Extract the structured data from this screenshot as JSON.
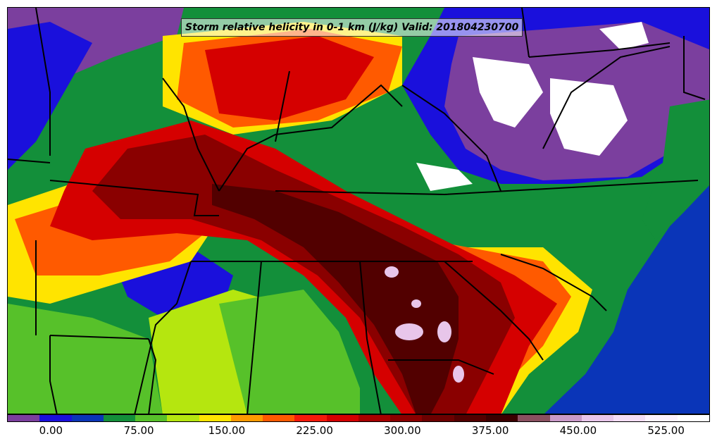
{
  "title": "Storm relative helicity in 0-1 km (J/kg) Valid: 201804230700",
  "colorbar": {
    "colors": [
      "#7b3f9e",
      "#1a10dc",
      "#0a35b8",
      "#138f3a",
      "#57c12a",
      "#b5e60f",
      "#ffe400",
      "#ff9a00",
      "#ff5a00",
      "#f51a0a",
      "#d50000",
      "#a70000",
      "#8a0000",
      "#6c0000",
      "#520000",
      "#3b0000",
      "#8a5060",
      "#c99ac8",
      "#e8c6ea",
      "#f4ddf5",
      "#fdf2fd",
      "#ffffff"
    ],
    "tick_labels": [
      "0.00",
      "75.00",
      "150.00",
      "225.00",
      "300.00",
      "375.00",
      "450.00",
      "525.00"
    ],
    "tick_values": [
      0,
      75,
      150,
      225,
      300,
      375,
      450,
      525
    ],
    "range": [
      -37.5,
      562.5
    ]
  },
  "field_regions": [
    {
      "name": "background-low",
      "color": "#138f3a"
    },
    {
      "name": "northwest-purple",
      "color": "#7b3f9e"
    },
    {
      "name": "northeast-purple",
      "color": "#7b3f9e"
    },
    {
      "name": "east-coast-blue",
      "color": "#0a35b8"
    },
    {
      "name": "southwest-blue",
      "color": "#1a10dc"
    },
    {
      "name": "central-green",
      "color": "#57c12a"
    },
    {
      "name": "yellow-band",
      "color": "#ffe400"
    },
    {
      "name": "orange-band",
      "color": "#ff5a00"
    },
    {
      "name": "red-core",
      "color": "#d50000"
    },
    {
      "name": "darkred-core",
      "color": "#8a0000"
    },
    {
      "name": "maroon-core",
      "color": "#520000"
    },
    {
      "name": "white-north",
      "color": "#ffffff"
    },
    {
      "name": "pink-south",
      "color": "#e8c6ea"
    }
  ]
}
